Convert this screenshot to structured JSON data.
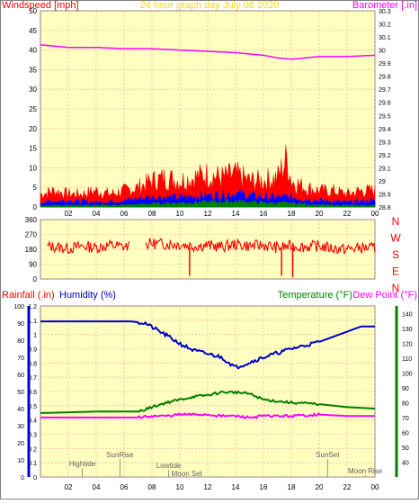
{
  "title": "24 hour graph day   July 08 2020",
  "colors": {
    "wind": "#ff0000",
    "gust_mid": "#0000ff",
    "gust_low": "#008000",
    "baro": "#ff00ff",
    "humidity": "#0000cc",
    "temp": "#008000",
    "dew": "#ff00ff",
    "plot_bg": "#ffffc0",
    "grid": "#ff9999",
    "title": "#ffd700"
  },
  "chart_data": [
    {
      "type": "line",
      "id": "wind_baro",
      "left_label": "Windspeed [mph]",
      "right_label": "Barometer [.in]",
      "ylim_left": [
        0,
        50
      ],
      "yticks_left": [
        "0",
        "5",
        "10",
        "15",
        "20",
        "25",
        "30",
        "35",
        "40",
        "45",
        "50"
      ],
      "ylim_right": [
        28.8,
        30.3
      ],
      "yticks_right": [
        "28.8",
        "28.9",
        "29",
        "29.1",
        "29.2",
        "29.3",
        "29.4",
        "29.5",
        "29.6",
        "29.7",
        "29.8",
        "29.9",
        "30",
        "30.1",
        "30.2",
        "30.3"
      ],
      "xlim": [
        0,
        24
      ],
      "xticks": [
        "02",
        "04",
        "06",
        "08",
        "10",
        "12",
        "14",
        "16",
        "18",
        "20",
        "22",
        "00"
      ],
      "series": [
        {
          "color_key": "baro",
          "axis": "right",
          "x": [
            0,
            2,
            4,
            6,
            8,
            10,
            12,
            14,
            16,
            17,
            18,
            19,
            20,
            22,
            24
          ],
          "values": [
            30.04,
            30.02,
            30.02,
            30.01,
            30.01,
            30.0,
            29.99,
            29.98,
            29.96,
            29.94,
            29.93,
            29.94,
            29.95,
            29.95,
            29.96
          ]
        },
        {
          "color_key": "wind",
          "axis": "left",
          "fill": true,
          "x": [
            0,
            1,
            2,
            3,
            4,
            5,
            6,
            7,
            8,
            9,
            10,
            11,
            12,
            13,
            14,
            15,
            16,
            17,
            17.7,
            18,
            19,
            20,
            21,
            22,
            23,
            24
          ],
          "values": [
            4,
            5,
            4,
            4,
            5,
            4,
            5,
            6,
            8,
            9,
            8,
            9,
            10,
            9,
            10,
            8,
            8,
            9,
            15,
            8,
            6,
            5,
            5,
            4,
            5,
            5
          ]
        },
        {
          "color_key": "gust_mid",
          "axis": "left",
          "fill": true,
          "x": [
            0,
            2,
            4,
            6,
            8,
            10,
            12,
            14,
            16,
            18,
            20,
            22,
            24
          ],
          "values": [
            1.5,
            2,
            1.5,
            2,
            3,
            3,
            3.5,
            4,
            3,
            3,
            2,
            1.5,
            2
          ]
        },
        {
          "color_key": "gust_low",
          "axis": "left",
          "fill": true,
          "x": [
            0,
            2,
            4,
            6,
            8,
            10,
            12,
            14,
            16,
            18,
            20,
            22,
            24
          ],
          "values": [
            0.4,
            0.6,
            0.5,
            0.6,
            1,
            1.3,
            1.5,
            1.8,
            1.3,
            1.2,
            0.6,
            0.5,
            0.5
          ]
        }
      ]
    },
    {
      "type": "scatter",
      "id": "wind_dir",
      "ylim": [
        0,
        360
      ],
      "yticks": [
        "0",
        "90",
        "180",
        "270",
        "360"
      ],
      "right_labels": [
        "N",
        "W",
        "S",
        "E",
        "N"
      ],
      "xlim": [
        0,
        24
      ],
      "series": [
        {
          "color_key": "wind",
          "x": [
            0,
            1,
            2,
            3,
            4,
            5,
            6,
            8,
            10,
            11,
            12,
            13,
            14,
            15,
            16,
            17,
            18,
            19,
            20,
            21,
            22,
            23,
            24
          ],
          "values": [
            200,
            195,
            185,
            200,
            190,
            205,
            195,
            215,
            210,
            200,
            205,
            195,
            210,
            200,
            205,
            190,
            200,
            195,
            200,
            185,
            180,
            190,
            185
          ]
        }
      ],
      "spikes": [
        {
          "x": 10.7,
          "value": 20
        },
        {
          "x": 17.3,
          "value": 20
        },
        {
          "x": 18.1,
          "value": 10
        }
      ]
    },
    {
      "type": "line",
      "id": "rain_hum_temp",
      "labels": {
        "rainfall": "Rainfall (.in)",
        "humidity": "Humidity (%)",
        "temperature": "Temperature (°F)",
        "dew": "Dew Point (°F)"
      },
      "ylim_hum": [
        0,
        100
      ],
      "yticks_hum": [
        "0",
        "10",
        "20",
        "30",
        "40",
        "50",
        "60",
        "70",
        "80",
        "90",
        "100"
      ],
      "ylim_rain": [
        0,
        1.2
      ],
      "yticks_rain": [
        "0",
        "0.1",
        "0.2",
        "0.3",
        "0.4",
        "0.5",
        "0.6",
        "0.7",
        "0.8",
        "0.9",
        "1",
        "1.1",
        "1.2"
      ],
      "ylim_temp": [
        30,
        145
      ],
      "yticks_temp": [
        "40",
        "50",
        "60",
        "70",
        "80",
        "90",
        "100",
        "110",
        "120",
        "130",
        "140"
      ],
      "xlim": [
        0,
        24
      ],
      "xticks": [
        "02",
        "04",
        "06",
        "08",
        "10",
        "12",
        "14",
        "16",
        "18",
        "20",
        "22",
        "00"
      ],
      "series": [
        {
          "name": "Humidity (%)",
          "color_key": "humidity",
          "axis": "hum",
          "x": [
            0,
            6.5,
            7.5,
            9,
            10,
            11,
            12,
            13,
            14,
            15,
            16,
            18,
            20,
            22,
            23,
            24
          ],
          "values": [
            91,
            91,
            90,
            83,
            78,
            74,
            72,
            70,
            64,
            67,
            70,
            75,
            79,
            85,
            88,
            88
          ]
        },
        {
          "name": "Temperature (°F)",
          "color_key": "temp",
          "axis": "temp",
          "x": [
            0,
            4,
            7,
            8,
            9,
            10,
            11,
            12,
            13,
            14,
            15,
            16,
            18,
            20,
            22,
            24
          ],
          "values": [
            73,
            74,
            74,
            77,
            80,
            82,
            84,
            85,
            87,
            87,
            86,
            82,
            80,
            79,
            77,
            76
          ]
        },
        {
          "name": "Dew Point (°F)",
          "color_key": "dew",
          "axis": "temp",
          "x": [
            0,
            4,
            7,
            8,
            9,
            10,
            11,
            12,
            13,
            14,
            15,
            16,
            18,
            20,
            22,
            24
          ],
          "values": [
            70,
            70,
            70,
            71,
            71,
            72,
            72,
            72,
            71,
            71,
            70,
            71,
            71,
            72,
            71,
            71
          ]
        }
      ],
      "events": [
        {
          "label": "Hightide",
          "x": 3
        },
        {
          "label": "SunRise",
          "x": 5.7
        },
        {
          "label": "Lowtide",
          "x": 9.2
        },
        {
          "label": "Moon Set",
          "x": 10.5
        },
        {
          "label": "SunSet",
          "x": 20.6
        },
        {
          "label": "Moon Rise",
          "x": 23.3
        }
      ]
    }
  ]
}
